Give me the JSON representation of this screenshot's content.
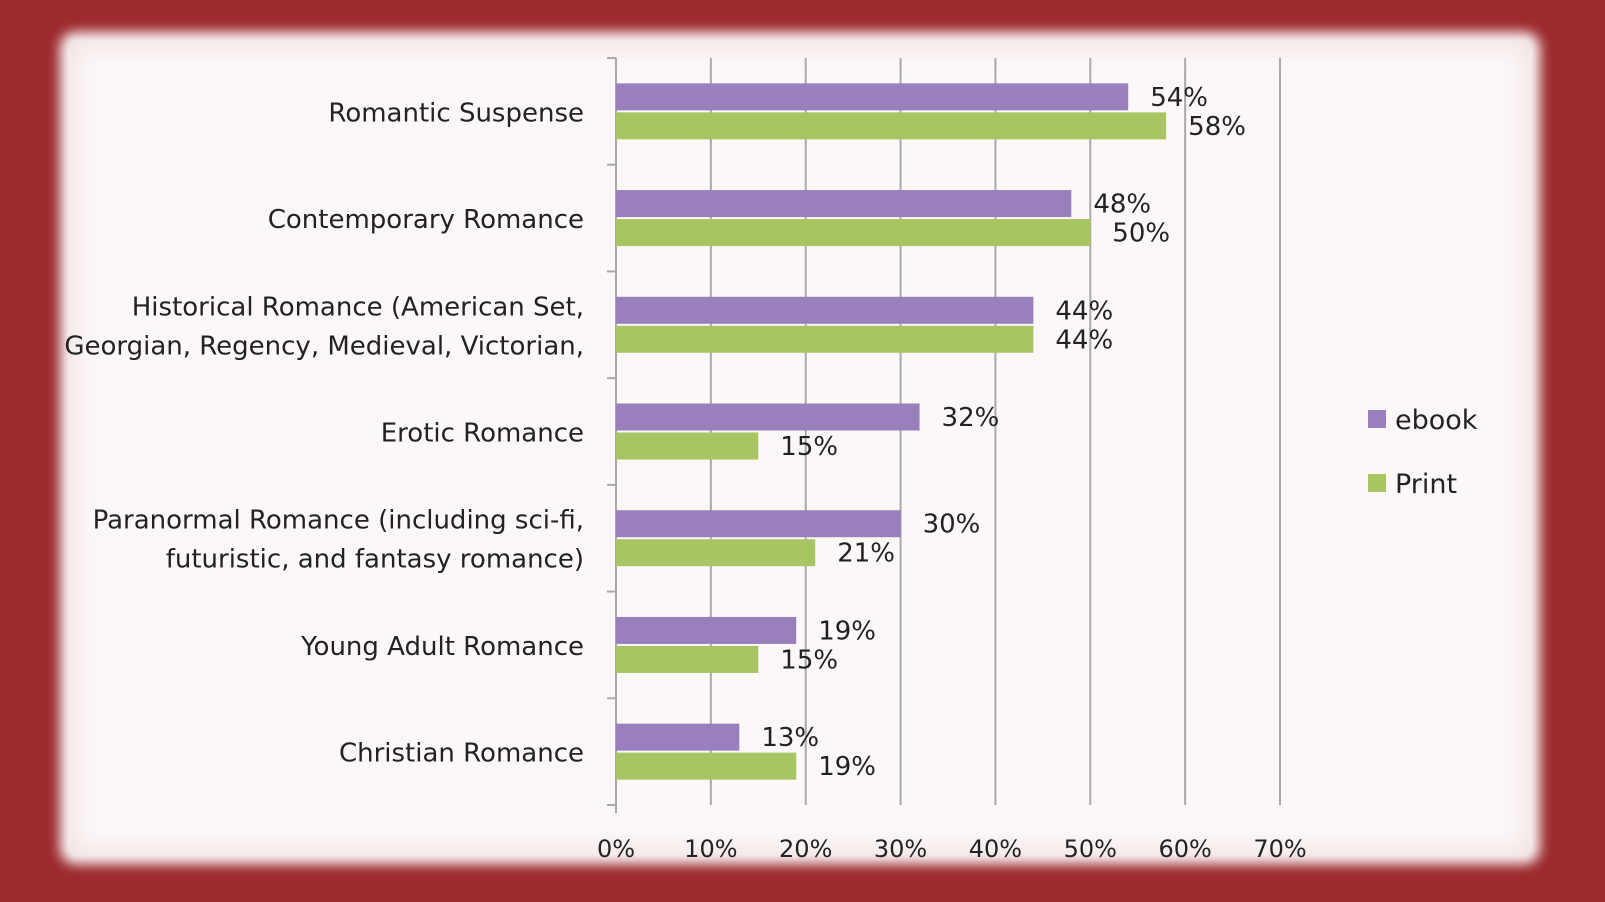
{
  "colors": {
    "ebook": "#9a7fbd",
    "print": "#a8c563",
    "grid": "#a9a9a9",
    "frame": "#9c2a2e"
  },
  "chart_data": {
    "type": "bar",
    "orientation": "horizontal",
    "categories": [
      "Romantic Suspense",
      "Contemporary Romance",
      "Historical Romance (American Set, Georgian, Regency, Medieval, Victorian,",
      "Erotic Romance",
      "Paranormal Romance (including sci-fi, futuristic, and fantasy romance)",
      "Young Adult Romance",
      "Christian Romance"
    ],
    "category_label_lines": [
      [
        "Romantic Suspense"
      ],
      [
        "Contemporary Romance"
      ],
      [
        "Historical Romance (American Set,",
        "Georgian, Regency, Medieval, Victorian,"
      ],
      [
        "Erotic Romance"
      ],
      [
        "Paranormal Romance (including sci-fi,",
        "futuristic, and fantasy romance)"
      ],
      [
        "Young Adult Romance"
      ],
      [
        "Christian Romance"
      ]
    ],
    "series": [
      {
        "name": "ebook",
        "values": [
          54,
          48,
          44,
          32,
          30,
          19,
          13
        ],
        "labels": [
          "54%",
          "48%",
          "44%",
          "32%",
          "30%",
          "19%",
          "13%"
        ]
      },
      {
        "name": "Print",
        "values": [
          58,
          50,
          44,
          15,
          21,
          15,
          19
        ],
        "labels": [
          "58%",
          "50%",
          "44%",
          "15%",
          "21%",
          "15%",
          "19%"
        ]
      }
    ],
    "xlim": [
      0,
      70
    ],
    "x_ticks": [
      "0%",
      "10%",
      "20%",
      "30%",
      "40%",
      "50%",
      "60%",
      "70%"
    ],
    "grid": true,
    "legend_position": "right",
    "title": "",
    "xlabel": "",
    "ylabel": ""
  }
}
